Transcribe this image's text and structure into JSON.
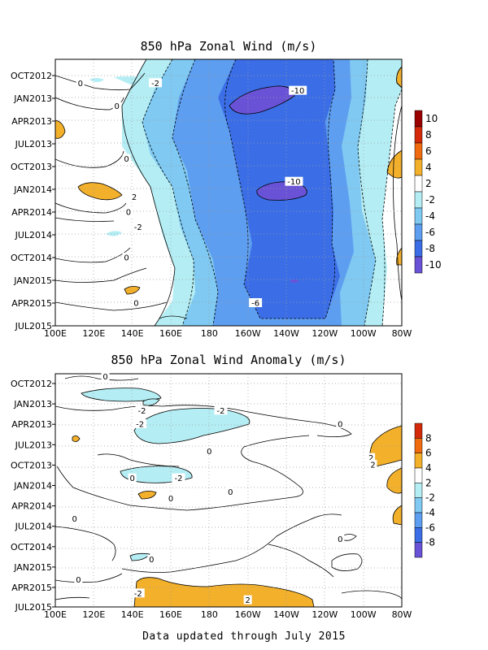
{
  "footer": "Data updated through July 2015",
  "chart_data": [
    {
      "type": "heatmap",
      "title": "850 hPa Zonal Wind (m/s)",
      "x_tick_labels": [
        "100E",
        "120E",
        "140E",
        "160E",
        "180",
        "160W",
        "140W",
        "120W",
        "100W",
        "80W"
      ],
      "y_tick_labels": [
        "OCT2012",
        "JAN2013",
        "APR2013",
        "JUL2013",
        "OCT2013",
        "JAN2014",
        "APR2014",
        "JUL2014",
        "OCT2014",
        "JAN2015",
        "APR2015",
        "JUL2015"
      ],
      "colorbar": {
        "levels": [
          "10",
          "8",
          "6",
          "4",
          "2",
          "-2",
          "-4",
          "-6",
          "-8",
          "-10"
        ],
        "colors": [
          "#9a0000",
          "#d42a0a",
          "#f06a10",
          "#f3b02b",
          "#ffffff",
          "#b4eef4",
          "#7fc9f2",
          "#5e9ef0",
          "#3b6ee6",
          "#6a52d6"
        ]
      },
      "contour_labels": [
        {
          "text": "0",
          "lon": 113,
          "time": "NOV2012"
        },
        {
          "text": "-2",
          "lon": 152,
          "time": "NOV2012"
        },
        {
          "text": "0",
          "lon": 132,
          "time": "FEB2013"
        },
        {
          "text": "-10",
          "lon": 226,
          "time": "DEC2012"
        },
        {
          "text": "0",
          "lon": 137,
          "time": "SEP2013"
        },
        {
          "text": "-10",
          "lon": 224,
          "time": "DEC2013"
        },
        {
          "text": "2",
          "lon": 141,
          "time": "FEB2014"
        },
        {
          "text": "0",
          "lon": 138,
          "time": "APR2014"
        },
        {
          "text": "-2",
          "lon": 143,
          "time": "JUN2014"
        },
        {
          "text": "0",
          "lon": 137,
          "time": "OCT2014"
        },
        {
          "text": "0",
          "lon": 142,
          "time": "APR2015"
        },
        {
          "text": "-6",
          "lon": 204,
          "time": "APR2015"
        }
      ]
    },
    {
      "type": "heatmap",
      "title": "850 hPa Zonal Wind Anomaly (m/s)",
      "x_tick_labels": [
        "100E",
        "120E",
        "140E",
        "160E",
        "180",
        "160W",
        "140W",
        "120W",
        "100W",
        "80W"
      ],
      "y_tick_labels": [
        "OCT2012",
        "JAN2013",
        "APR2013",
        "JUL2013",
        "OCT2013",
        "JAN2014",
        "APR2014",
        "JUL2014",
        "OCT2014",
        "JAN2015",
        "APR2015",
        "JUL2015"
      ],
      "colorbar": {
        "levels": [
          "8",
          "6",
          "4",
          "2",
          "-2",
          "-4",
          "-6",
          "-8"
        ],
        "colors": [
          "#d42a0a",
          "#f06a10",
          "#f3b02b",
          "#ffffff",
          "#b4eef4",
          "#7fc9f2",
          "#5e9ef0",
          "#3b6ee6",
          "#6a52d6"
        ]
      },
      "contour_labels": [
        {
          "text": "0",
          "lon": 126,
          "time": "SEP2012"
        },
        {
          "text": "-2",
          "lon": 145,
          "time": "FEB2013"
        },
        {
          "text": "-2",
          "lon": 186,
          "time": "FEB2013"
        },
        {
          "text": "-2",
          "lon": 144,
          "time": "APR2013"
        },
        {
          "text": "0",
          "lon": 248,
          "time": "APR2013"
        },
        {
          "text": "0",
          "lon": 180,
          "time": "AUG2013"
        },
        {
          "text": "2",
          "lon": 264,
          "time": "SEP2013"
        },
        {
          "text": "0",
          "lon": 140,
          "time": "DEC2013"
        },
        {
          "text": "-2",
          "lon": 164,
          "time": "DEC2013"
        },
        {
          "text": "0",
          "lon": 191,
          "time": "FEB2014"
        },
        {
          "text": "2",
          "lon": 265,
          "time": "OCT2013"
        },
        {
          "text": "0",
          "lon": 160,
          "time": "MAR2014"
        },
        {
          "text": "0",
          "lon": 110,
          "time": "JUN2014"
        },
        {
          "text": "0",
          "lon": 248,
          "time": "SEP2014"
        },
        {
          "text": "0",
          "lon": 150,
          "time": "DEC2014"
        },
        {
          "text": "0",
          "lon": 112,
          "time": "MAR2015"
        },
        {
          "text": "-2",
          "lon": 143,
          "time": "MAY2015"
        },
        {
          "text": "2",
          "lon": 200,
          "time": "JUN2015"
        }
      ]
    }
  ]
}
